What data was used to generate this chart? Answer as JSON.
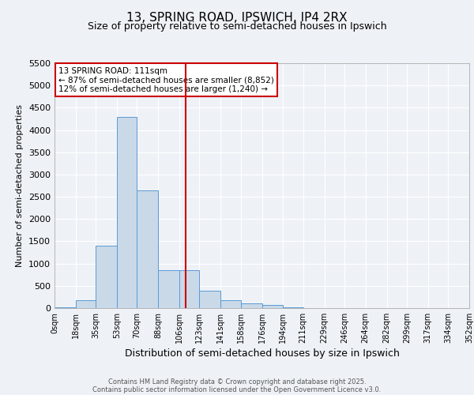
{
  "title1": "13, SPRING ROAD, IPSWICH, IP4 2RX",
  "title2": "Size of property relative to semi-detached houses in Ipswich",
  "xlabel": "Distribution of semi-detached houses by size in Ipswich",
  "ylabel": "Number of semi-detached properties",
  "bin_edges": [
    0,
    18,
    35,
    53,
    70,
    88,
    106,
    123,
    141,
    158,
    176,
    194,
    211,
    229,
    246,
    264,
    282,
    299,
    317,
    334,
    352
  ],
  "bar_heights": [
    20,
    170,
    1400,
    4300,
    2650,
    850,
    850,
    390,
    170,
    110,
    70,
    20,
    0,
    0,
    0,
    0,
    0,
    0,
    0,
    0
  ],
  "bar_color": "#c9d9e8",
  "bar_edge_color": "#5b9bd5",
  "property_size": 111,
  "vline_color": "#cc0000",
  "ylim": [
    0,
    5500
  ],
  "yticks": [
    0,
    500,
    1000,
    1500,
    2000,
    2500,
    3000,
    3500,
    4000,
    4500,
    5000,
    5500
  ],
  "annotation_title": "13 SPRING ROAD: 111sqm",
  "annotation_line1": "← 87% of semi-detached houses are smaller (8,852)",
  "annotation_line2": "12% of semi-detached houses are larger (1,240) →",
  "annotation_box_color": "#ffffff",
  "annotation_box_edge": "#cc0000",
  "footnote1": "Contains HM Land Registry data © Crown copyright and database right 2025.",
  "footnote2": "Contains public sector information licensed under the Open Government Licence v3.0.",
  "background_color": "#eef2f7",
  "grid_color": "#ffffff",
  "tick_labels": [
    "0sqm",
    "18sqm",
    "35sqm",
    "53sqm",
    "70sqm",
    "88sqm",
    "106sqm",
    "123sqm",
    "141sqm",
    "158sqm",
    "176sqm",
    "194sqm",
    "211sqm",
    "229sqm",
    "246sqm",
    "264sqm",
    "282sqm",
    "299sqm",
    "317sqm",
    "334sqm",
    "352sqm"
  ]
}
